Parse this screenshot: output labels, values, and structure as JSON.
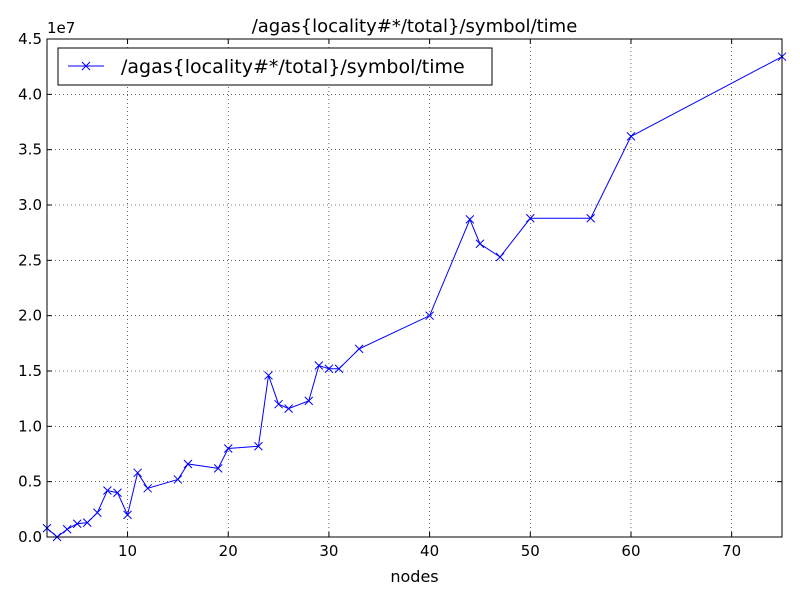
{
  "chart_data": {
    "type": "line",
    "title": "/agas{locality#*/total}/symbol/time",
    "xlabel": "nodes",
    "ylabel": "",
    "y_offset_label": "1e7",
    "xlim": [
      2,
      75
    ],
    "ylim": [
      0,
      4.5
    ],
    "x_ticks": [
      10,
      20,
      30,
      40,
      50,
      60,
      70
    ],
    "y_ticks": [
      0.0,
      0.5,
      1.0,
      1.5,
      2.0,
      2.5,
      3.0,
      3.5,
      4.0,
      4.5
    ],
    "y_tick_labels": [
      "0.0",
      "0.5",
      "1.0",
      "1.5",
      "2.0",
      "2.5",
      "3.0",
      "3.5",
      "4.0",
      "4.5"
    ],
    "grid": true,
    "legend_position": "top-left",
    "series": [
      {
        "name": "/agas{locality#*/total}/symbol/time",
        "color": "#0000ff",
        "marker": "x",
        "x": [
          2,
          3,
          4,
          5,
          6,
          7,
          8,
          9,
          10,
          11,
          12,
          15,
          16,
          19,
          20,
          23,
          24,
          25,
          26,
          28,
          29,
          30,
          31,
          33,
          40,
          44,
          45,
          47,
          50,
          56,
          60,
          75
        ],
        "y": [
          0.08,
          0.0,
          0.07,
          0.12,
          0.13,
          0.22,
          0.42,
          0.4,
          0.2,
          0.58,
          0.44,
          0.52,
          0.66,
          0.62,
          0.8,
          0.82,
          1.46,
          1.2,
          1.16,
          1.23,
          1.55,
          1.52,
          1.52,
          1.7,
          2.0,
          2.87,
          2.65,
          2.53,
          2.88,
          2.88,
          3.62,
          4.34
        ]
      }
    ]
  }
}
